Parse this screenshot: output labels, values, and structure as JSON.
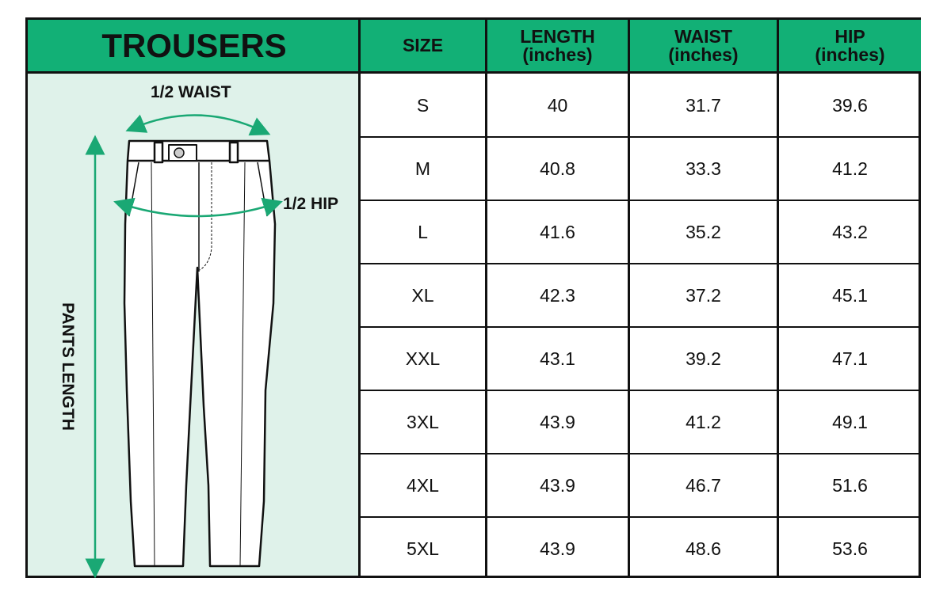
{
  "title": "TROUSERS",
  "colors": {
    "header_green": "#12b076",
    "panel_mint": "#dff2ea",
    "arrow_green": "#1aa874"
  },
  "illustration": {
    "waist_label": "1/2  WAIST",
    "hip_label": "1/2  HIP",
    "length_label": "PANTS LENGTH"
  },
  "table": {
    "headers": [
      {
        "line1": "SIZE",
        "line2": ""
      },
      {
        "line1": "LENGTH",
        "line2": "(inches)"
      },
      {
        "line1": "WAIST",
        "line2": "(inches)"
      },
      {
        "line1": "HIP",
        "line2": "(inches)"
      }
    ],
    "rows": [
      [
        "S",
        "40",
        "31.7",
        "39.6"
      ],
      [
        "M",
        "40.8",
        "33.3",
        "41.2"
      ],
      [
        "L",
        "41.6",
        "35.2",
        "43.2"
      ],
      [
        "XL",
        "42.3",
        "37.2",
        "45.1"
      ],
      [
        "XXL",
        "43.1",
        "39.2",
        "47.1"
      ],
      [
        "3XL",
        "43.9",
        "41.2",
        "49.1"
      ],
      [
        "4XL",
        "43.9",
        "46.7",
        "51.6"
      ],
      [
        "5XL",
        "43.9",
        "48.6",
        "53.6"
      ]
    ]
  }
}
